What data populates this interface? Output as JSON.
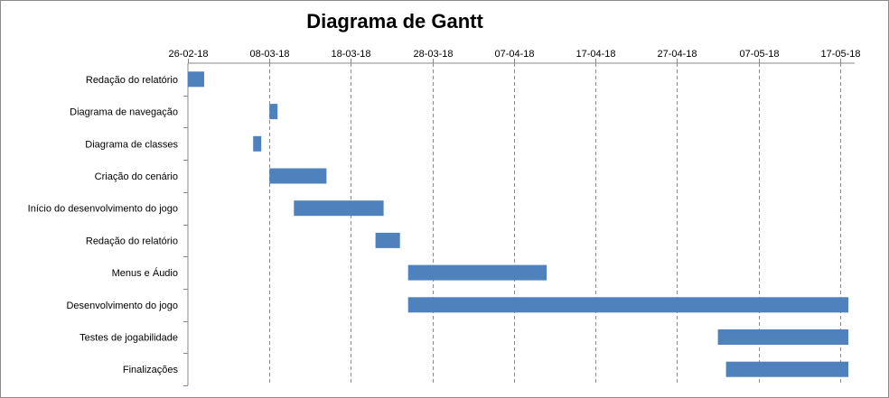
{
  "chart_data": {
    "type": "bar",
    "orientation": "horizontal",
    "subtype": "gantt",
    "title": "Diagrama de Gantt",
    "xlabel": "",
    "ylabel": "",
    "x_axis_position": "top",
    "x_ticks": [
      "26-02-18",
      "08-03-18",
      "18-03-18",
      "28-03-18",
      "07-04-18",
      "17-04-18",
      "27-04-18",
      "07-05-18",
      "17-05-18"
    ],
    "xlim": [
      "2018-02-26",
      "2018-05-18"
    ],
    "grid": "vertical",
    "legend": "none",
    "bar_color": "#4f81bd",
    "categories": [
      "Redação do relatório",
      "Diagrama de navegação",
      "Diagrama de classes",
      "Criação do cenário",
      "Início do desenvolvimento do jogo",
      "Redação do relatório",
      "Menus e Áudio",
      "Desenvolvimento do jogo",
      "Testes de jogabilidade",
      "Finalizações"
    ],
    "tasks": [
      {
        "start": "2018-02-26",
        "end": "2018-02-28"
      },
      {
        "start": "2018-03-08",
        "end": "2018-03-09"
      },
      {
        "start": "2018-03-06",
        "end": "2018-03-07"
      },
      {
        "start": "2018-03-08",
        "end": "2018-03-15"
      },
      {
        "start": "2018-03-11",
        "end": "2018-03-22"
      },
      {
        "start": "2018-03-21",
        "end": "2018-03-24"
      },
      {
        "start": "2018-03-25",
        "end": "2018-04-11"
      },
      {
        "start": "2018-03-25",
        "end": "2018-05-18"
      },
      {
        "start": "2018-05-02",
        "end": "2018-05-18"
      },
      {
        "start": "2018-05-03",
        "end": "2018-05-18"
      }
    ]
  }
}
